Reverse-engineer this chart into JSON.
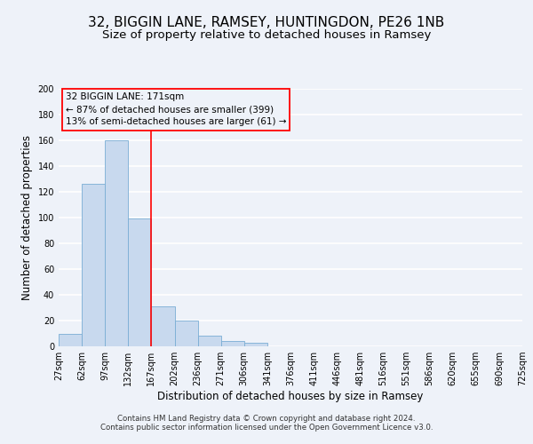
{
  "title": "32, BIGGIN LANE, RAMSEY, HUNTINGDON, PE26 1NB",
  "subtitle": "Size of property relative to detached houses in Ramsey",
  "xlabel": "Distribution of detached houses by size in Ramsey",
  "ylabel": "Number of detached properties",
  "bar_values": [
    10,
    126,
    160,
    99,
    31,
    20,
    8,
    4,
    3,
    0,
    0,
    0,
    0,
    0,
    0,
    0,
    0,
    0,
    0,
    0
  ],
  "bar_color": "#c8d9ee",
  "bar_edge_color": "#7aadd4",
  "x_labels": [
    "27sqm",
    "62sqm",
    "97sqm",
    "132sqm",
    "167sqm",
    "202sqm",
    "236sqm",
    "271sqm",
    "306sqm",
    "341sqm",
    "376sqm",
    "411sqm",
    "446sqm",
    "481sqm",
    "516sqm",
    "551sqm",
    "586sqm",
    "620sqm",
    "655sqm",
    "690sqm",
    "725sqm"
  ],
  "ylim": [
    0,
    200
  ],
  "yticks": [
    0,
    20,
    40,
    60,
    80,
    100,
    120,
    140,
    160,
    180,
    200
  ],
  "red_line_x": 3.5,
  "annotation_title": "32 BIGGIN LANE: 171sqm",
  "annotation_line1": "← 87% of detached houses are smaller (399)",
  "annotation_line2": "13% of semi-detached houses are larger (61) →",
  "footer_line1": "Contains HM Land Registry data © Crown copyright and database right 2024.",
  "footer_line2": "Contains public sector information licensed under the Open Government Licence v3.0.",
  "background_color": "#eef2f9",
  "grid_color": "#ffffff",
  "title_fontsize": 11,
  "subtitle_fontsize": 9.5,
  "axis_fontsize": 8.5,
  "tick_fontsize": 7.0,
  "footer_fontsize": 6.2
}
